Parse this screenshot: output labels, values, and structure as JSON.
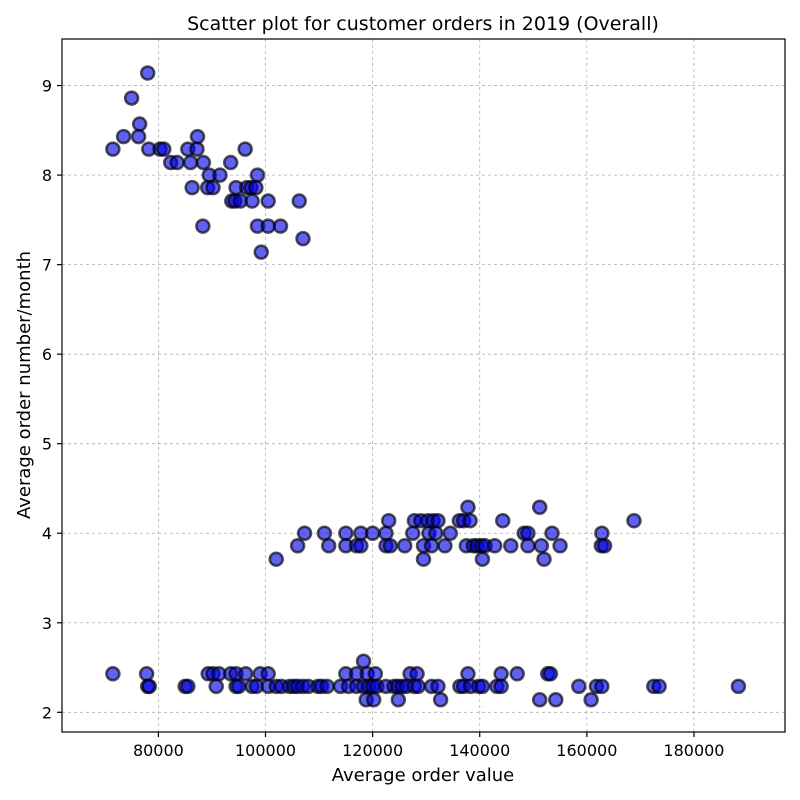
{
  "chart_data": {
    "type": "scatter",
    "title": "Scatter plot for customer orders in 2019 (Overall)",
    "xlabel": "Average order value",
    "ylabel": "Average order number/month",
    "xlim": [
      62000,
      197000
    ],
    "ylim": [
      1.78,
      9.52
    ],
    "xticks": [
      80000,
      100000,
      120000,
      140000,
      160000,
      180000
    ],
    "yticks": [
      2,
      3,
      4,
      5,
      6,
      7,
      8,
      9
    ],
    "grid": true,
    "point_color": "#0000e6",
    "edge_color": "#000000",
    "series": [
      {
        "points": [
          [
            78000,
            9.14
          ],
          [
            75000,
            8.86
          ],
          [
            76500,
            8.57
          ],
          [
            73500,
            8.43
          ],
          [
            76300,
            8.43
          ],
          [
            71500,
            8.29
          ],
          [
            78200,
            8.29
          ],
          [
            80300,
            8.29
          ],
          [
            81000,
            8.29
          ],
          [
            85500,
            8.29
          ],
          [
            87200,
            8.29
          ],
          [
            96200,
            8.29
          ],
          [
            87300,
            8.43
          ],
          [
            82300,
            8.14
          ],
          [
            83500,
            8.14
          ],
          [
            86000,
            8.14
          ],
          [
            88400,
            8.14
          ],
          [
            93500,
            8.14
          ],
          [
            89500,
            8.0
          ],
          [
            91500,
            8.0
          ],
          [
            98500,
            8.0
          ],
          [
            86300,
            7.86
          ],
          [
            89200,
            7.86
          ],
          [
            90200,
            7.86
          ],
          [
            94500,
            7.86
          ],
          [
            96500,
            7.86
          ],
          [
            97300,
            7.86
          ],
          [
            98200,
            7.86
          ],
          [
            93700,
            7.71
          ],
          [
            94300,
            7.71
          ],
          [
            95300,
            7.71
          ],
          [
            97500,
            7.71
          ],
          [
            100500,
            7.71
          ],
          [
            106300,
            7.71
          ],
          [
            88300,
            7.43
          ],
          [
            98500,
            7.43
          ],
          [
            100500,
            7.43
          ],
          [
            102800,
            7.43
          ],
          [
            107000,
            7.29
          ],
          [
            99200,
            7.14
          ],
          [
            137800,
            4.29
          ],
          [
            151200,
            4.29
          ],
          [
            107300,
            4.0
          ],
          [
            111000,
            4.0
          ],
          [
            115000,
            4.0
          ],
          [
            117800,
            4.0
          ],
          [
            120000,
            4.0
          ],
          [
            122500,
            4.0
          ],
          [
            127500,
            4.0
          ],
          [
            130500,
            4.0
          ],
          [
            131800,
            4.0
          ],
          [
            134500,
            4.0
          ],
          [
            148300,
            4.0
          ],
          [
            149000,
            4.0
          ],
          [
            153500,
            4.0
          ],
          [
            162800,
            4.0
          ],
          [
            123000,
            4.14
          ],
          [
            127800,
            4.14
          ],
          [
            129000,
            4.14
          ],
          [
            130300,
            4.14
          ],
          [
            131300,
            4.14
          ],
          [
            132200,
            4.14
          ],
          [
            136200,
            4.14
          ],
          [
            137000,
            4.14
          ],
          [
            138200,
            4.14
          ],
          [
            144300,
            4.14
          ],
          [
            168800,
            4.14
          ],
          [
            106000,
            3.86
          ],
          [
            111800,
            3.86
          ],
          [
            115000,
            3.86
          ],
          [
            117000,
            3.86
          ],
          [
            117800,
            3.86
          ],
          [
            122500,
            3.86
          ],
          [
            123300,
            3.86
          ],
          [
            126000,
            3.86
          ],
          [
            129500,
            3.86
          ],
          [
            131000,
            3.86
          ],
          [
            133500,
            3.86
          ],
          [
            137500,
            3.86
          ],
          [
            138800,
            3.86
          ],
          [
            139500,
            3.86
          ],
          [
            140300,
            3.86
          ],
          [
            141000,
            3.86
          ],
          [
            142800,
            3.86
          ],
          [
            145800,
            3.86
          ],
          [
            149000,
            3.86
          ],
          [
            151500,
            3.86
          ],
          [
            155000,
            3.86
          ],
          [
            162700,
            3.86
          ],
          [
            163300,
            3.86
          ],
          [
            102000,
            3.71
          ],
          [
            129500,
            3.71
          ],
          [
            140500,
            3.71
          ],
          [
            152000,
            3.71
          ],
          [
            71500,
            2.43
          ],
          [
            77800,
            2.43
          ],
          [
            89300,
            2.43
          ],
          [
            90200,
            2.43
          ],
          [
            91300,
            2.43
          ],
          [
            93500,
            2.43
          ],
          [
            94500,
            2.43
          ],
          [
            96300,
            2.43
          ],
          [
            99000,
            2.43
          ],
          [
            100500,
            2.43
          ],
          [
            115000,
            2.43
          ],
          [
            117000,
            2.43
          ],
          [
            119000,
            2.43
          ],
          [
            120500,
            2.43
          ],
          [
            127000,
            2.43
          ],
          [
            128300,
            2.43
          ],
          [
            137800,
            2.43
          ],
          [
            144000,
            2.43
          ],
          [
            147000,
            2.43
          ],
          [
            152700,
            2.43
          ],
          [
            153200,
            2.43
          ],
          [
            78000,
            2.29
          ],
          [
            78300,
            2.29
          ],
          [
            85000,
            2.29
          ],
          [
            85500,
            2.29
          ],
          [
            90800,
            2.29
          ],
          [
            94500,
            2.29
          ],
          [
            95000,
            2.29
          ],
          [
            97500,
            2.29
          ],
          [
            98300,
            2.29
          ],
          [
            100500,
            2.29
          ],
          [
            102000,
            2.29
          ],
          [
            103000,
            2.29
          ],
          [
            104500,
            2.29
          ],
          [
            105300,
            2.29
          ],
          [
            106000,
            2.29
          ],
          [
            107000,
            2.29
          ],
          [
            108000,
            2.29
          ],
          [
            109800,
            2.29
          ],
          [
            110500,
            2.29
          ],
          [
            111500,
            2.29
          ],
          [
            114000,
            2.29
          ],
          [
            115500,
            2.29
          ],
          [
            117000,
            2.29
          ],
          [
            118300,
            2.29
          ],
          [
            119300,
            2.29
          ],
          [
            120000,
            2.29
          ],
          [
            120800,
            2.29
          ],
          [
            122500,
            2.29
          ],
          [
            124000,
            2.29
          ],
          [
            124700,
            2.29
          ],
          [
            125500,
            2.29
          ],
          [
            126300,
            2.29
          ],
          [
            127800,
            2.29
          ],
          [
            128500,
            2.29
          ],
          [
            131000,
            2.29
          ],
          [
            132200,
            2.29
          ],
          [
            136300,
            2.29
          ],
          [
            137000,
            2.29
          ],
          [
            138300,
            2.29
          ],
          [
            139800,
            2.29
          ],
          [
            140500,
            2.29
          ],
          [
            143200,
            2.29
          ],
          [
            144000,
            2.29
          ],
          [
            158500,
            2.29
          ],
          [
            161800,
            2.29
          ],
          [
            162800,
            2.29
          ],
          [
            172500,
            2.29
          ],
          [
            173500,
            2.29
          ],
          [
            188300,
            2.29
          ],
          [
            118300,
            2.57
          ],
          [
            118800,
            2.14
          ],
          [
            120200,
            2.14
          ],
          [
            124800,
            2.14
          ],
          [
            132700,
            2.14
          ],
          [
            151200,
            2.14
          ],
          [
            154200,
            2.14
          ],
          [
            160800,
            2.14
          ]
        ]
      }
    ]
  }
}
